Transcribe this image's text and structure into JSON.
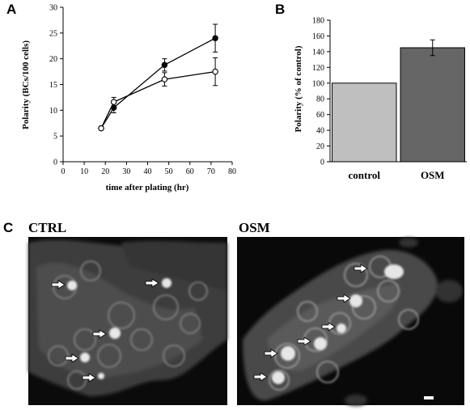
{
  "panels": {
    "a": "A",
    "b": "B",
    "c": "C"
  },
  "chart_data": [
    {
      "type": "line",
      "panel": "A",
      "xlabel": "time after plating (hr)",
      "ylabel": "Polarity (BCs/100 cells)",
      "xlim": [
        0,
        80
      ],
      "ylim": [
        0,
        30
      ],
      "xticks": [
        0,
        10,
        20,
        30,
        40,
        50,
        60,
        70,
        80
      ],
      "yticks": [
        0,
        5,
        10,
        15,
        20,
        25,
        30
      ],
      "grid": false,
      "series": [
        {
          "marker": "filled-circle",
          "color": "#000000",
          "x": [
            18,
            24,
            48,
            72
          ],
          "y": [
            6.5,
            10.5,
            18.8,
            24.0
          ],
          "error": [
            0.3,
            1.0,
            1.2,
            2.7
          ]
        },
        {
          "marker": "open-circle",
          "color": "#000000",
          "x": [
            18,
            24,
            48,
            72
          ],
          "y": [
            6.5,
            11.6,
            16.0,
            17.5
          ],
          "error": [
            0.3,
            0.9,
            1.3,
            2.7
          ]
        }
      ]
    },
    {
      "type": "bar",
      "panel": "B",
      "ylabel": "Polarity (% of control)",
      "ylim": [
        0,
        180
      ],
      "yticks": [
        0,
        20,
        40,
        60,
        80,
        100,
        120,
        140,
        160,
        180
      ],
      "categories": [
        "control",
        "OSM"
      ],
      "values": [
        100,
        145
      ],
      "errors": [
        0,
        10
      ],
      "colors": [
        "#bfbfbf",
        "#666666"
      ]
    }
  ],
  "micrographs": [
    {
      "label": "CTRL"
    },
    {
      "label": "OSM"
    }
  ]
}
